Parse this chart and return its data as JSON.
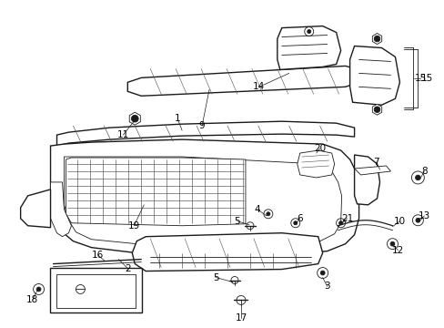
{
  "bg_color": "#ffffff",
  "line_color": "#1a1a1a",
  "label_color": "#000000",
  "fig_width": 4.89,
  "fig_height": 3.6,
  "dpi": 100,
  "lw_main": 1.0,
  "lw_thin": 0.6,
  "lw_thick": 1.4,
  "label_fs": 7.5
}
